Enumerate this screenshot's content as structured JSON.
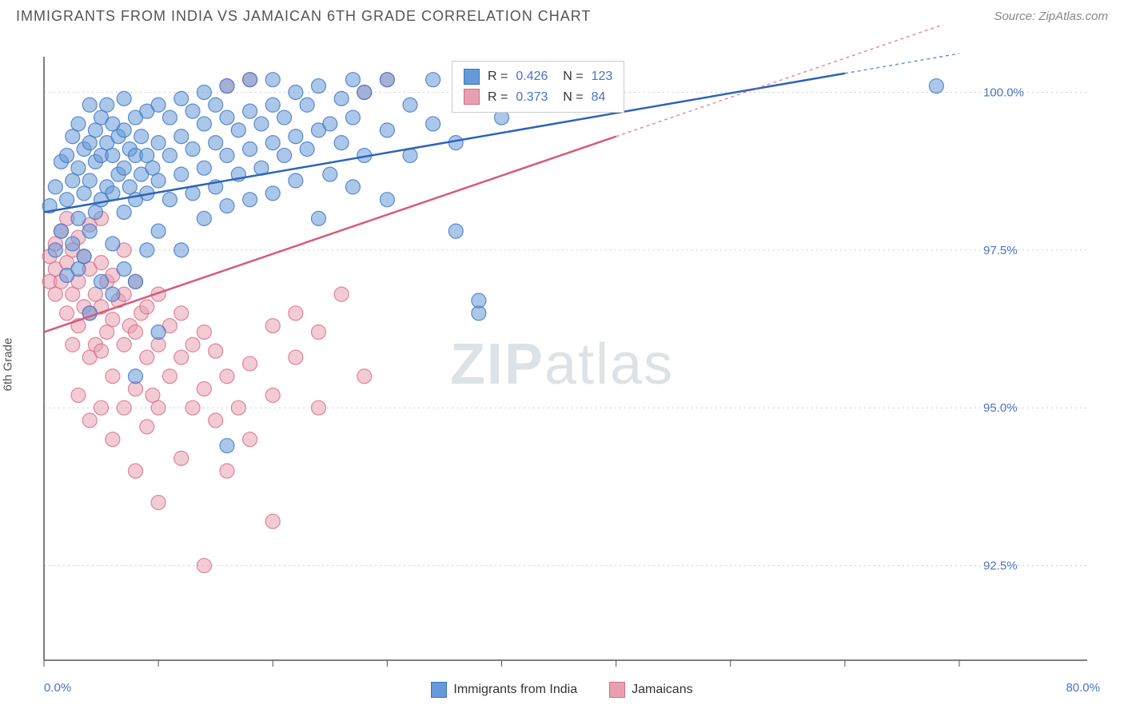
{
  "header": {
    "title": "IMMIGRANTS FROM INDIA VS JAMAICAN 6TH GRADE CORRELATION CHART",
    "source": "Source: ZipAtlas.com"
  },
  "watermark": {
    "part1": "ZIP",
    "part2": "atlas"
  },
  "chart": {
    "type": "scatter",
    "ylabel": "6th Grade",
    "xlim": [
      0,
      80
    ],
    "ylim": [
      91,
      100.5
    ],
    "xticks": [
      0,
      10,
      20,
      30,
      40,
      50,
      60,
      70,
      80
    ],
    "yticks": [
      92.5,
      95.0,
      97.5,
      100.0
    ],
    "ytick_labels": [
      "92.5%",
      "95.0%",
      "97.5%",
      "100.0%"
    ],
    "xmin_label": "0.0%",
    "xmax_label": "80.0%",
    "background_color": "#ffffff",
    "grid_color": "#cccccc",
    "axis_color": "#555555",
    "marker_radius": 9,
    "marker_opacity": 0.55,
    "series": [
      {
        "name": "Immigrants from India",
        "color": "#6699d8",
        "stroke": "#3b74c2",
        "line_color": "#2d64b8",
        "R": "0.426",
        "N": "123",
        "trend": {
          "x1": 0,
          "y1": 98.1,
          "x2": 70,
          "y2": 100.3,
          "dash_from_x": 70,
          "dash_to_x": 80
        },
        "points": [
          [
            0.5,
            98.2
          ],
          [
            1,
            97.5
          ],
          [
            1,
            98.5
          ],
          [
            1.5,
            97.8
          ],
          [
            1.5,
            98.9
          ],
          [
            2,
            97.1
          ],
          [
            2,
            98.3
          ],
          [
            2,
            99.0
          ],
          [
            2.5,
            97.6
          ],
          [
            2.5,
            98.6
          ],
          [
            2.5,
            99.3
          ],
          [
            3,
            97.2
          ],
          [
            3,
            98.0
          ],
          [
            3,
            98.8
          ],
          [
            3,
            99.5
          ],
          [
            3.5,
            97.4
          ],
          [
            3.5,
            98.4
          ],
          [
            3.5,
            99.1
          ],
          [
            4,
            96.5
          ],
          [
            4,
            97.8
          ],
          [
            4,
            98.6
          ],
          [
            4,
            99.2
          ],
          [
            4,
            99.8
          ],
          [
            4.5,
            98.1
          ],
          [
            4.5,
            98.9
          ],
          [
            4.5,
            99.4
          ],
          [
            5,
            97.0
          ],
          [
            5,
            98.3
          ],
          [
            5,
            99.0
          ],
          [
            5,
            99.6
          ],
          [
            5.5,
            98.5
          ],
          [
            5.5,
            99.2
          ],
          [
            5.5,
            99.8
          ],
          [
            6,
            96.8
          ],
          [
            6,
            97.6
          ],
          [
            6,
            98.4
          ],
          [
            6,
            99.0
          ],
          [
            6,
            99.5
          ],
          [
            6.5,
            98.7
          ],
          [
            6.5,
            99.3
          ],
          [
            7,
            97.2
          ],
          [
            7,
            98.1
          ],
          [
            7,
            98.8
          ],
          [
            7,
            99.4
          ],
          [
            7,
            99.9
          ],
          [
            7.5,
            98.5
          ],
          [
            7.5,
            99.1
          ],
          [
            8,
            95.5
          ],
          [
            8,
            97.0
          ],
          [
            8,
            98.3
          ],
          [
            8,
            99.0
          ],
          [
            8,
            99.6
          ],
          [
            8.5,
            98.7
          ],
          [
            8.5,
            99.3
          ],
          [
            9,
            97.5
          ],
          [
            9,
            98.4
          ],
          [
            9,
            99.0
          ],
          [
            9,
            99.7
          ],
          [
            9.5,
            98.8
          ],
          [
            10,
            96.2
          ],
          [
            10,
            97.8
          ],
          [
            10,
            98.6
          ],
          [
            10,
            99.2
          ],
          [
            10,
            99.8
          ],
          [
            11,
            98.3
          ],
          [
            11,
            99.0
          ],
          [
            11,
            99.6
          ],
          [
            12,
            97.5
          ],
          [
            12,
            98.7
          ],
          [
            12,
            99.3
          ],
          [
            12,
            99.9
          ],
          [
            13,
            98.4
          ],
          [
            13,
            99.1
          ],
          [
            13,
            99.7
          ],
          [
            14,
            98.0
          ],
          [
            14,
            98.8
          ],
          [
            14,
            99.5
          ],
          [
            14,
            100.0
          ],
          [
            15,
            98.5
          ],
          [
            15,
            99.2
          ],
          [
            15,
            99.8
          ],
          [
            16,
            94.4
          ],
          [
            16,
            98.2
          ],
          [
            16,
            99.0
          ],
          [
            16,
            99.6
          ],
          [
            16,
            100.1
          ],
          [
            17,
            98.7
          ],
          [
            17,
            99.4
          ],
          [
            18,
            98.3
          ],
          [
            18,
            99.1
          ],
          [
            18,
            99.7
          ],
          [
            18,
            100.2
          ],
          [
            19,
            98.8
          ],
          [
            19,
            99.5
          ],
          [
            20,
            98.4
          ],
          [
            20,
            99.2
          ],
          [
            20,
            99.8
          ],
          [
            20,
            100.2
          ],
          [
            21,
            99.0
          ],
          [
            21,
            99.6
          ],
          [
            22,
            98.6
          ],
          [
            22,
            99.3
          ],
          [
            22,
            100.0
          ],
          [
            23,
            99.1
          ],
          [
            23,
            99.8
          ],
          [
            24,
            98.0
          ],
          [
            24,
            99.4
          ],
          [
            24,
            100.1
          ],
          [
            25,
            98.7
          ],
          [
            25,
            99.5
          ],
          [
            26,
            99.2
          ],
          [
            26,
            99.9
          ],
          [
            27,
            98.5
          ],
          [
            27,
            99.6
          ],
          [
            27,
            100.2
          ],
          [
            28,
            99.0
          ],
          [
            28,
            100.0
          ],
          [
            30,
            98.3
          ],
          [
            30,
            99.4
          ],
          [
            30,
            100.2
          ],
          [
            32,
            99.0
          ],
          [
            32,
            99.8
          ],
          [
            34,
            99.5
          ],
          [
            34,
            100.2
          ],
          [
            36,
            97.8
          ],
          [
            36,
            99.2
          ],
          [
            38,
            96.5
          ],
          [
            38,
            96.7
          ],
          [
            40,
            99.6
          ],
          [
            78,
            100.1
          ]
        ]
      },
      {
        "name": "Jamaicans",
        "color": "#e8a0b0",
        "stroke": "#d86b88",
        "line_color": "#d85a7a",
        "R": "0.373",
        "N": "84",
        "trend": {
          "x1": 0,
          "y1": 96.2,
          "x2": 50,
          "y2": 99.3,
          "dash_from_x": 50,
          "dash_to_x": 80
        },
        "points": [
          [
            0.5,
            97.4
          ],
          [
            0.5,
            97.0
          ],
          [
            1,
            97.6
          ],
          [
            1,
            96.8
          ],
          [
            1,
            97.2
          ],
          [
            1.5,
            97.0
          ],
          [
            1.5,
            97.8
          ],
          [
            2,
            96.5
          ],
          [
            2,
            97.3
          ],
          [
            2,
            98.0
          ],
          [
            2.5,
            96.0
          ],
          [
            2.5,
            96.8
          ],
          [
            2.5,
            97.5
          ],
          [
            3,
            95.2
          ],
          [
            3,
            96.3
          ],
          [
            3,
            97.0
          ],
          [
            3,
            97.7
          ],
          [
            3.5,
            96.6
          ],
          [
            3.5,
            97.4
          ],
          [
            4,
            94.8
          ],
          [
            4,
            95.8
          ],
          [
            4,
            96.5
          ],
          [
            4,
            97.2
          ],
          [
            4,
            97.9
          ],
          [
            4.5,
            96.0
          ],
          [
            4.5,
            96.8
          ],
          [
            5,
            95.0
          ],
          [
            5,
            95.9
          ],
          [
            5,
            96.6
          ],
          [
            5,
            97.3
          ],
          [
            5,
            98.0
          ],
          [
            5.5,
            96.2
          ],
          [
            5.5,
            97.0
          ],
          [
            6,
            94.5
          ],
          [
            6,
            95.5
          ],
          [
            6,
            96.4
          ],
          [
            6,
            97.1
          ],
          [
            6.5,
            96.7
          ],
          [
            7,
            95.0
          ],
          [
            7,
            96.0
          ],
          [
            7,
            96.8
          ],
          [
            7,
            97.5
          ],
          [
            7.5,
            96.3
          ],
          [
            8,
            94.0
          ],
          [
            8,
            95.3
          ],
          [
            8,
            96.2
          ],
          [
            8,
            97.0
          ],
          [
            8.5,
            96.5
          ],
          [
            9,
            94.7
          ],
          [
            9,
            95.8
          ],
          [
            9,
            96.6
          ],
          [
            9.5,
            95.2
          ],
          [
            10,
            93.5
          ],
          [
            10,
            95.0
          ],
          [
            10,
            96.0
          ],
          [
            10,
            96.8
          ],
          [
            11,
            95.5
          ],
          [
            11,
            96.3
          ],
          [
            12,
            94.2
          ],
          [
            12,
            95.8
          ],
          [
            12,
            96.5
          ],
          [
            13,
            95.0
          ],
          [
            13,
            96.0
          ],
          [
            14,
            92.5
          ],
          [
            14,
            95.3
          ],
          [
            14,
            96.2
          ],
          [
            15,
            94.8
          ],
          [
            15,
            95.9
          ],
          [
            16,
            94.0
          ],
          [
            16,
            95.5
          ],
          [
            16,
            100.1
          ],
          [
            17,
            95.0
          ],
          [
            18,
            94.5
          ],
          [
            18,
            95.7
          ],
          [
            18,
            100.2
          ],
          [
            20,
            93.2
          ],
          [
            20,
            95.2
          ],
          [
            20,
            96.3
          ],
          [
            22,
            95.8
          ],
          [
            22,
            96.5
          ],
          [
            24,
            95.0
          ],
          [
            24,
            96.2
          ],
          [
            26,
            96.8
          ],
          [
            28,
            95.5
          ],
          [
            28,
            100.0
          ],
          [
            30,
            100.2
          ]
        ]
      }
    ]
  },
  "legend_bottom": {
    "item1": "Immigrants from India",
    "item2": "Jamaicans"
  }
}
